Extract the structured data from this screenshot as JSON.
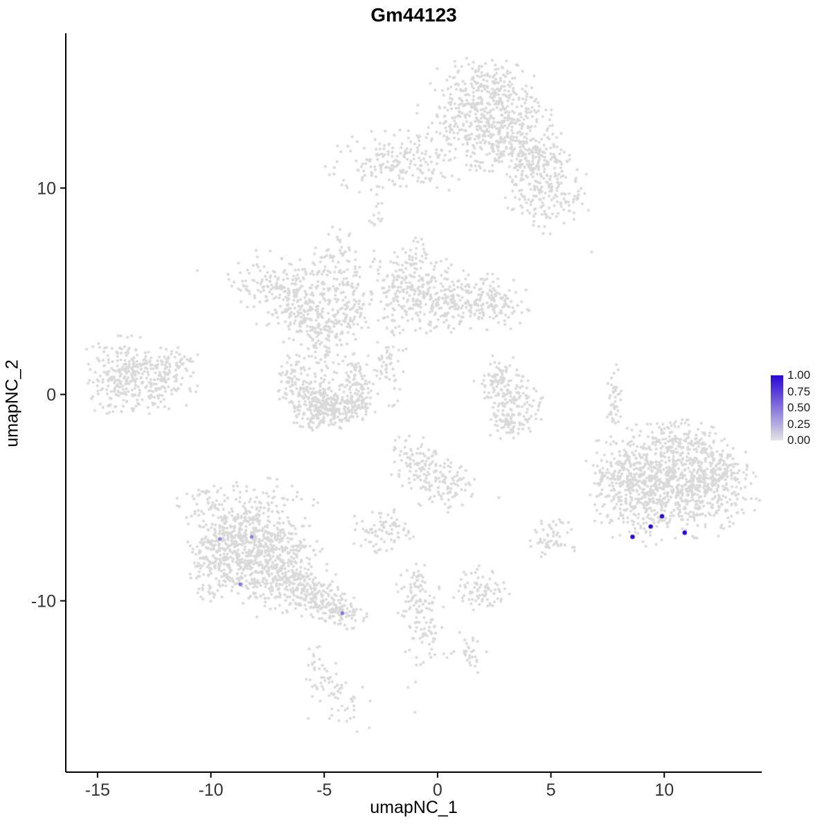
{
  "title": "Gm44123",
  "axes": {
    "xlabel": "umapNC_1",
    "ylabel": "umapNC_2",
    "x_ticks": [
      -15,
      -10,
      -5,
      0,
      5,
      10
    ],
    "y_ticks": [
      -10,
      0,
      10
    ],
    "xlim": [
      -16.4,
      14.3
    ],
    "ylim": [
      -18.3,
      17.5
    ]
  },
  "legend": {
    "labels": [
      "1.00",
      "0.75",
      "0.50",
      "0.25",
      "0.00"
    ],
    "values": [
      1.0,
      0.75,
      0.5,
      0.25,
      0.0
    ]
  },
  "colors": {
    "point": "#D9D9D9",
    "high": "#2A06D6",
    "low": "#E3E3E3",
    "axis_line": "#000000",
    "tick_text": "#333333"
  },
  "chart_data": {
    "type": "scatter",
    "title": "Gm44123",
    "xlabel": "umapNC_1",
    "ylabel": "umapNC_2",
    "xlim": [
      -16.4,
      14.3
    ],
    "ylim": [
      -18.3,
      17.5
    ],
    "grid": false,
    "legend_position": "right",
    "seed": 42,
    "point_radius": 2.1,
    "clusters": [
      {
        "cx": 1.9,
        "cy": 13.7,
        "sx": 1.3,
        "sy": 1.1,
        "n": 420
      },
      {
        "cx": 3.1,
        "cy": 12.3,
        "sx": 0.9,
        "sy": 0.8,
        "n": 150
      },
      {
        "cx": 4.3,
        "cy": 11.3,
        "sx": 0.8,
        "sy": 0.7,
        "n": 150
      },
      {
        "cx": 4.9,
        "cy": 9.7,
        "sx": 0.8,
        "sy": 0.8,
        "n": 150
      },
      {
        "cx": 2.5,
        "cy": 14.8,
        "sx": 0.7,
        "sy": 0.5,
        "n": 60
      },
      {
        "cx": -1.6,
        "cy": 11.2,
        "sx": 1.4,
        "sy": 0.7,
        "n": 190
      },
      {
        "cx": -2.7,
        "cy": 8.6,
        "sx": 0.2,
        "sy": 0.7,
        "n": 14
      },
      {
        "cx": -7.2,
        "cy": 5.2,
        "sx": 0.9,
        "sy": 0.8,
        "n": 140
      },
      {
        "cx": -5.9,
        "cy": 4.7,
        "sx": 0.7,
        "sy": 0.7,
        "n": 110
      },
      {
        "cx": -4.4,
        "cy": 6.1,
        "sx": 0.45,
        "sy": 1.0,
        "n": 90
      },
      {
        "cx": -5.3,
        "cy": 3.4,
        "sx": 0.9,
        "sy": 0.5,
        "n": 110
      },
      {
        "cx": -3.8,
        "cy": 4.3,
        "sx": 0.4,
        "sy": 0.7,
        "n": 60
      },
      {
        "cx": -4.8,
        "cy": 2.4,
        "sx": 0.5,
        "sy": 0.7,
        "n": 70
      },
      {
        "cx": -1.2,
        "cy": 5.2,
        "sx": 0.8,
        "sy": 1.0,
        "n": 230
      },
      {
        "cx": 0.5,
        "cy": 4.6,
        "sx": 1.0,
        "sy": 0.7,
        "n": 170
      },
      {
        "cx": 2.2,
        "cy": 4.4,
        "sx": 0.8,
        "sy": 0.6,
        "n": 120
      },
      {
        "cx": -2.1,
        "cy": 1.8,
        "sx": 0.3,
        "sy": 1.0,
        "n": 55
      },
      {
        "cx": -6.3,
        "cy": 0.8,
        "sx": 0.45,
        "sy": 0.6,
        "n": 70
      },
      {
        "cx": -5.7,
        "cy": -0.4,
        "sx": 0.5,
        "sy": 0.5,
        "n": 90
      },
      {
        "cx": -4.8,
        "cy": -0.9,
        "sx": 0.6,
        "sy": 0.4,
        "n": 110
      },
      {
        "cx": -3.9,
        "cy": -0.5,
        "sx": 0.5,
        "sy": 0.5,
        "n": 90
      },
      {
        "cx": -3.4,
        "cy": 0.6,
        "sx": 0.4,
        "sy": 0.6,
        "n": 70
      },
      {
        "cx": -4.9,
        "cy": 0.1,
        "sx": 0.8,
        "sy": 0.5,
        "n": 70
      },
      {
        "cx": -13.8,
        "cy": 1.3,
        "sx": 0.85,
        "sy": 0.65,
        "n": 160
      },
      {
        "cx": -12.5,
        "cy": 0.6,
        "sx": 0.8,
        "sy": 0.7,
        "n": 150
      },
      {
        "cx": -14.3,
        "cy": 0.1,
        "sx": 0.5,
        "sy": 0.5,
        "n": 60
      },
      {
        "cx": -11.3,
        "cy": 1.5,
        "sx": 0.4,
        "sy": 0.4,
        "n": 30
      },
      {
        "cx": 2.8,
        "cy": 0.5,
        "sx": 0.5,
        "sy": 0.6,
        "n": 85
      },
      {
        "cx": 3.5,
        "cy": -0.5,
        "sx": 0.55,
        "sy": 0.6,
        "n": 95
      },
      {
        "cx": 3.1,
        "cy": -1.4,
        "sx": 0.4,
        "sy": 0.4,
        "n": 50
      },
      {
        "cx": 7.8,
        "cy": 0.0,
        "sx": 0.15,
        "sy": 0.95,
        "n": 40
      },
      {
        "cx": 10.3,
        "cy": -3.6,
        "sx": 1.4,
        "sy": 1.0,
        "n": 380
      },
      {
        "cx": 11.6,
        "cy": -4.8,
        "sx": 1.1,
        "sy": 0.9,
        "n": 280
      },
      {
        "cx": 9.1,
        "cy": -5.2,
        "sx": 1.0,
        "sy": 0.9,
        "n": 240
      },
      {
        "cx": 8.2,
        "cy": -3.6,
        "sx": 0.7,
        "sy": 0.8,
        "n": 120
      },
      {
        "cx": 10.6,
        "cy": -2.4,
        "sx": 0.9,
        "sy": 0.5,
        "n": 100
      },
      {
        "cx": 12.6,
        "cy": -3.6,
        "sx": 0.5,
        "sy": 0.6,
        "n": 70
      },
      {
        "cx": -8.9,
        "cy": -6.6,
        "sx": 1.0,
        "sy": 0.9,
        "n": 280
      },
      {
        "cx": -8.3,
        "cy": -8.4,
        "sx": 1.1,
        "sy": 1.0,
        "n": 320
      },
      {
        "cx": -7.0,
        "cy": -7.5,
        "sx": 0.8,
        "sy": 0.8,
        "n": 200
      },
      {
        "cx": -6.3,
        "cy": -9.2,
        "sx": 0.8,
        "sy": 0.6,
        "n": 150
      },
      {
        "cx": -5.2,
        "cy": -10.0,
        "sx": 0.7,
        "sy": 0.45,
        "n": 110,
        "rot": -20
      },
      {
        "cx": -4.3,
        "cy": -10.5,
        "sx": 0.5,
        "sy": 0.35,
        "n": 70,
        "rot": -15
      },
      {
        "cx": -8.4,
        "cy": -5.2,
        "sx": 1.3,
        "sy": 0.5,
        "n": 80
      },
      {
        "cx": -10.2,
        "cy": -8.0,
        "sx": 0.4,
        "sy": 0.7,
        "n": 60
      },
      {
        "cx": -0.8,
        "cy": -3.2,
        "sx": 0.6,
        "sy": 0.6,
        "n": 90
      },
      {
        "cx": 0.2,
        "cy": -4.3,
        "sx": 0.6,
        "sy": 0.6,
        "n": 95
      },
      {
        "cx": -2.5,
        "cy": -6.7,
        "sx": 0.65,
        "sy": 0.5,
        "n": 80
      },
      {
        "cx": 1.9,
        "cy": -9.5,
        "sx": 0.55,
        "sy": 0.5,
        "n": 75
      },
      {
        "cx": -1.0,
        "cy": -9.6,
        "sx": 0.45,
        "sy": 0.6,
        "n": 60
      },
      {
        "cx": -0.6,
        "cy": -11.5,
        "sx": 0.4,
        "sy": 1.1,
        "n": 70
      },
      {
        "cx": 1.3,
        "cy": -12.4,
        "sx": 0.45,
        "sy": 0.5,
        "n": 30
      },
      {
        "cx": 5.1,
        "cy": -7.0,
        "sx": 0.5,
        "sy": 0.4,
        "n": 55
      },
      {
        "cx": -5.3,
        "cy": -13.4,
        "sx": 0.35,
        "sy": 0.6,
        "n": 30
      },
      {
        "cx": -4.2,
        "cy": -14.7,
        "sx": 0.5,
        "sy": 0.8,
        "n": 45,
        "rot": 30
      }
    ],
    "singles": [
      [
        -10.6,
        6.0
      ],
      [
        -3.0,
        8.4
      ],
      [
        6.8,
        6.9
      ],
      [
        2.7,
        -5.0
      ],
      [
        -1.0,
        -15.4
      ],
      [
        -5.7,
        -15.7
      ],
      [
        -1.3,
        -14.2
      ]
    ],
    "highlighted_cells": [
      {
        "x": 8.6,
        "y": -6.9,
        "value": 1.0
      },
      {
        "x": 9.4,
        "y": -6.4,
        "value": 1.0
      },
      {
        "x": 9.9,
        "y": -5.9,
        "value": 1.0
      },
      {
        "x": 10.9,
        "y": -6.7,
        "value": 1.0
      },
      {
        "x": -9.6,
        "y": -7.0,
        "value": 0.45
      },
      {
        "x": -8.2,
        "y": -6.9,
        "value": 0.45
      },
      {
        "x": -8.7,
        "y": -9.2,
        "value": 0.5
      },
      {
        "x": -4.2,
        "y": -10.6,
        "value": 0.5
      }
    ]
  }
}
